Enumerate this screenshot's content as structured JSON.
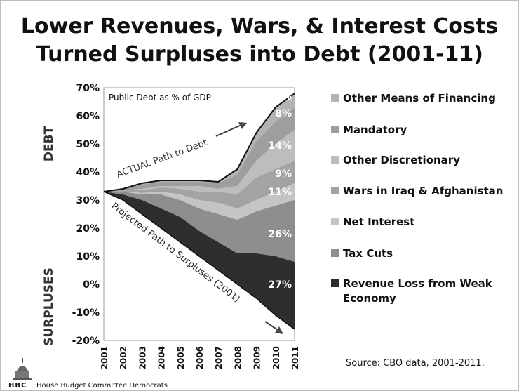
{
  "title": {
    "line1": "Lower Revenues, Wars, & Interest Costs",
    "line2": "Turned Surpluses into Debt (2001-11)"
  },
  "source": "Source: CBO data, 2001-2011.",
  "footer": {
    "logo_text": "HBC",
    "org": "House Budget Committee Democrats"
  },
  "chart_data": {
    "type": "area",
    "title": "Public Debt as % of GDP",
    "ylabel_top": "DEBT",
    "ylabel_bottom": "SURPLUSES",
    "x": [
      "2001",
      "2002",
      "2003",
      "2004",
      "2005",
      "2006",
      "2007",
      "2008",
      "2009",
      "2010",
      "2011"
    ],
    "yticks": [
      "70%",
      "60%",
      "50%",
      "40%",
      "30%",
      "20%",
      "10%",
      "0%",
      "-10%",
      "-20%"
    ],
    "ylim": [
      -20,
      70
    ],
    "actual_path": [
      33,
      34,
      36,
      37,
      37,
      37,
      36.5,
      41,
      54,
      63,
      68
    ],
    "projected_path": [
      33,
      30,
      25,
      20,
      15,
      10,
      5,
      0,
      -5,
      -11,
      -16
    ],
    "band_boundaries": {
      "revenue_loss_top": [
        33,
        32,
        30,
        27,
        24,
        19,
        15,
        11,
        11,
        10,
        8
      ],
      "tax_cuts_top": [
        33,
        33,
        32,
        32,
        30,
        27,
        25,
        23,
        26,
        28,
        30
      ],
      "net_interest_top": [
        33,
        33,
        32.5,
        33,
        32,
        30,
        29,
        27,
        30,
        33,
        36
      ],
      "wars_top": [
        33,
        33.5,
        33.5,
        34.5,
        34,
        33,
        33,
        32,
        38,
        41,
        44
      ],
      "other_discretionary_top": [
        33,
        33.5,
        34,
        35,
        35,
        35,
        34,
        35,
        44,
        50,
        55
      ],
      "mandatory_top": [
        33,
        34,
        35.5,
        36.5,
        36.5,
        36.5,
        36,
        39,
        51,
        58,
        63
      ]
    },
    "series": [
      {
        "name": "Other Means of Financing",
        "color": "#b3b3b3",
        "label": "5%"
      },
      {
        "name": "Mandatory",
        "color": "#9e9e9e",
        "label": "8%"
      },
      {
        "name": "Other Discretionary",
        "color": "#bdbdbd",
        "label": "14%"
      },
      {
        "name": "Wars in Iraq & Afghanistan",
        "color": "#a3a3a3",
        "label": "9%"
      },
      {
        "name": "Net Interest",
        "color": "#c4c4c4",
        "label": "11%"
      },
      {
        "name": "Tax Cuts",
        "color": "#8e8e8e",
        "label": "26%"
      },
      {
        "name": "Revenue Loss from Weak Economy",
        "color": "#2e2e2e",
        "label": "27%"
      }
    ],
    "annotations": {
      "actual": "ACTUAL Path to Debt",
      "projected": "Projected Path to Surpluses (2001)"
    },
    "legend_position": "right",
    "grid": false
  }
}
